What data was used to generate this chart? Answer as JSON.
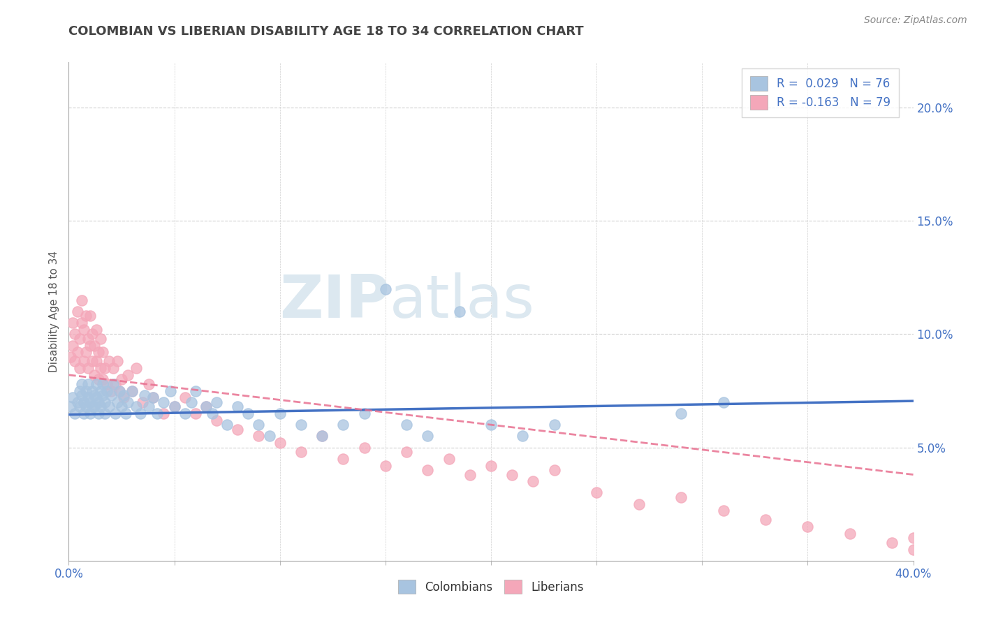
{
  "title": "COLOMBIAN VS LIBERIAN DISABILITY AGE 18 TO 34 CORRELATION CHART",
  "source": "Source: ZipAtlas.com",
  "ylabel_label": "Disability Age 18 to 34",
  "xlim": [
    0.0,
    0.4
  ],
  "ylim": [
    0.0,
    0.22
  ],
  "xticks": [
    0.0,
    0.05,
    0.1,
    0.15,
    0.2,
    0.25,
    0.3,
    0.35,
    0.4
  ],
  "yticks_right": [
    0.05,
    0.1,
    0.15,
    0.2
  ],
  "yticklabels_right": [
    "5.0%",
    "10.0%",
    "15.0%",
    "20.0%"
  ],
  "colombian_color": "#a8c4e0",
  "liberian_color": "#f4a7b9",
  "colombian_line_color": "#4472c4",
  "liberian_line_color": "#e87090",
  "watermark_top": "ZIP",
  "watermark_bottom": "atlas",
  "watermark_color": "#dce8f0",
  "legend_line1": "R =  0.029   N = 76",
  "legend_line2": "R = -0.163   N = 79",
  "colombians_label": "Colombians",
  "liberians_label": "Liberians",
  "title_color": "#444444",
  "background_color": "#ffffff",
  "grid_color": "#d0d0d0",
  "col_trend": [
    0.0645,
    0.0705
  ],
  "lib_trend": [
    0.082,
    0.038
  ],
  "colombian_scatter_x": [
    0.001,
    0.002,
    0.003,
    0.004,
    0.005,
    0.005,
    0.006,
    0.006,
    0.007,
    0.007,
    0.008,
    0.008,
    0.009,
    0.009,
    0.01,
    0.01,
    0.011,
    0.011,
    0.012,
    0.012,
    0.013,
    0.013,
    0.014,
    0.014,
    0.015,
    0.015,
    0.016,
    0.016,
    0.017,
    0.017,
    0.018,
    0.019,
    0.02,
    0.021,
    0.022,
    0.023,
    0.024,
    0.025,
    0.026,
    0.027,
    0.028,
    0.03,
    0.032,
    0.034,
    0.036,
    0.038,
    0.04,
    0.042,
    0.045,
    0.048,
    0.05,
    0.055,
    0.058,
    0.06,
    0.065,
    0.068,
    0.07,
    0.075,
    0.08,
    0.085,
    0.09,
    0.095,
    0.1,
    0.11,
    0.12,
    0.13,
    0.14,
    0.15,
    0.16,
    0.17,
    0.185,
    0.2,
    0.215,
    0.23,
    0.29,
    0.31
  ],
  "colombian_scatter_y": [
    0.068,
    0.072,
    0.065,
    0.07,
    0.075,
    0.068,
    0.073,
    0.078,
    0.065,
    0.07,
    0.068,
    0.075,
    0.072,
    0.078,
    0.065,
    0.07,
    0.068,
    0.075,
    0.073,
    0.068,
    0.072,
    0.078,
    0.065,
    0.07,
    0.075,
    0.068,
    0.073,
    0.078,
    0.065,
    0.07,
    0.075,
    0.068,
    0.073,
    0.078,
    0.065,
    0.07,
    0.075,
    0.068,
    0.073,
    0.065,
    0.07,
    0.075,
    0.068,
    0.065,
    0.073,
    0.068,
    0.072,
    0.065,
    0.07,
    0.075,
    0.068,
    0.065,
    0.07,
    0.075,
    0.068,
    0.065,
    0.07,
    0.06,
    0.068,
    0.065,
    0.06,
    0.055,
    0.065,
    0.06,
    0.055,
    0.06,
    0.065,
    0.12,
    0.06,
    0.055,
    0.11,
    0.06,
    0.055,
    0.06,
    0.065,
    0.07
  ],
  "liberian_scatter_x": [
    0.001,
    0.002,
    0.002,
    0.003,
    0.003,
    0.004,
    0.004,
    0.005,
    0.005,
    0.006,
    0.006,
    0.007,
    0.007,
    0.008,
    0.008,
    0.009,
    0.009,
    0.01,
    0.01,
    0.011,
    0.011,
    0.012,
    0.012,
    0.013,
    0.013,
    0.014,
    0.014,
    0.015,
    0.015,
    0.016,
    0.016,
    0.017,
    0.018,
    0.019,
    0.02,
    0.021,
    0.022,
    0.023,
    0.024,
    0.025,
    0.026,
    0.028,
    0.03,
    0.032,
    0.035,
    0.038,
    0.04,
    0.045,
    0.05,
    0.055,
    0.06,
    0.065,
    0.07,
    0.08,
    0.09,
    0.1,
    0.11,
    0.12,
    0.13,
    0.14,
    0.15,
    0.16,
    0.17,
    0.18,
    0.19,
    0.2,
    0.21,
    0.22,
    0.23,
    0.25,
    0.27,
    0.29,
    0.31,
    0.33,
    0.35,
    0.37,
    0.39,
    0.4,
    0.4
  ],
  "liberian_scatter_y": [
    0.09,
    0.095,
    0.105,
    0.088,
    0.1,
    0.092,
    0.11,
    0.085,
    0.098,
    0.105,
    0.115,
    0.088,
    0.102,
    0.092,
    0.108,
    0.085,
    0.098,
    0.095,
    0.108,
    0.088,
    0.1,
    0.082,
    0.095,
    0.088,
    0.102,
    0.08,
    0.092,
    0.085,
    0.098,
    0.08,
    0.092,
    0.085,
    0.078,
    0.088,
    0.075,
    0.085,
    0.078,
    0.088,
    0.075,
    0.08,
    0.072,
    0.082,
    0.075,
    0.085,
    0.07,
    0.078,
    0.072,
    0.065,
    0.068,
    0.072,
    0.065,
    0.068,
    0.062,
    0.058,
    0.055,
    0.052,
    0.048,
    0.055,
    0.045,
    0.05,
    0.042,
    0.048,
    0.04,
    0.045,
    0.038,
    0.042,
    0.038,
    0.035,
    0.04,
    0.03,
    0.025,
    0.028,
    0.022,
    0.018,
    0.015,
    0.012,
    0.008,
    0.005,
    0.01
  ]
}
